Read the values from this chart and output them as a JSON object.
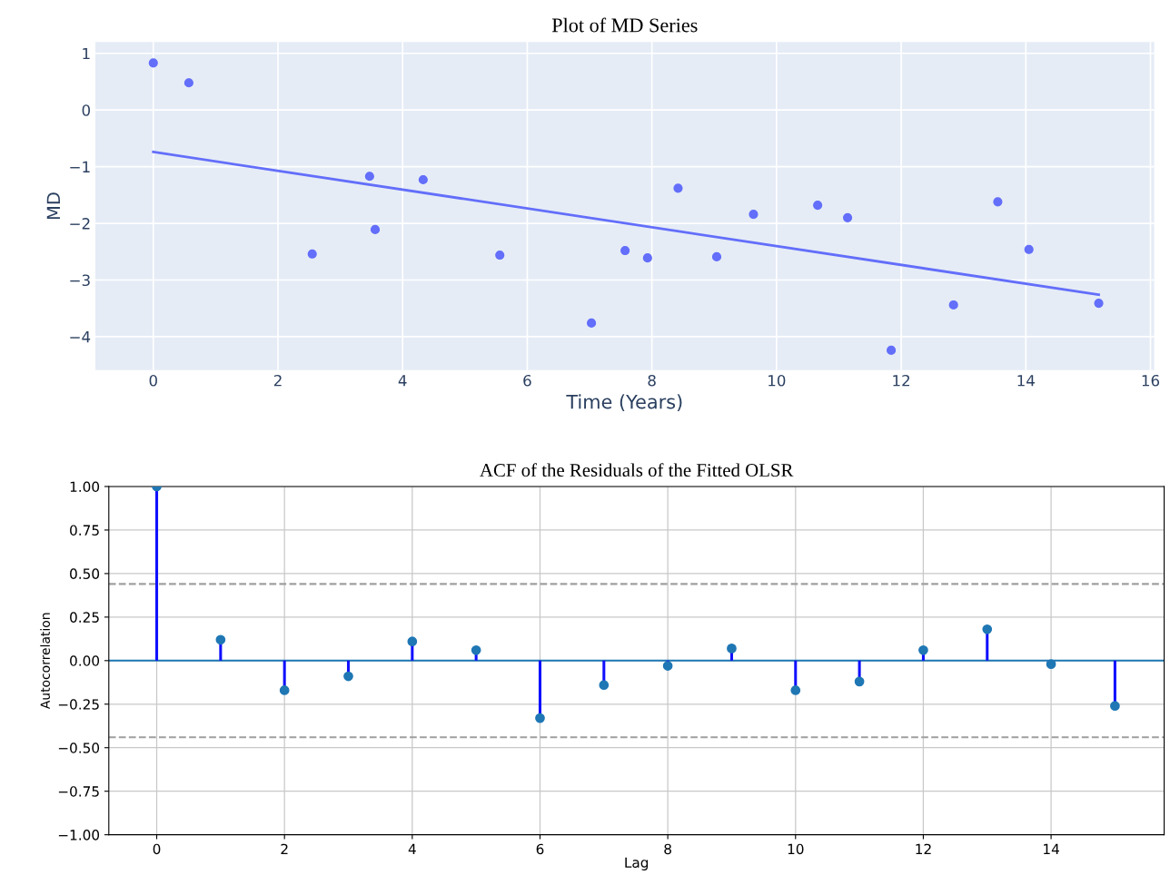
{
  "chart_data": [
    {
      "type": "scatter",
      "title": "Plot of MD Series",
      "xlabel": "Time (Years)",
      "ylabel": "MD",
      "xlim": [
        -0.93,
        16.06
      ],
      "ylim": [
        -4.59,
        1.2
      ],
      "xticks": [
        0,
        2,
        4,
        6,
        8,
        10,
        12,
        14,
        16
      ],
      "yticks": [
        1,
        0,
        {
          "value": -1,
          "label": "−1"
        },
        {
          "value": -2,
          "label": "−2"
        },
        {
          "value": -3,
          "label": "−3"
        },
        {
          "value": -4,
          "label": "−4"
        }
      ],
      "grid": true,
      "series": [
        {
          "type": "scatter",
          "marker": "circle",
          "color": "#636efa",
          "x": [
            0,
            0.57,
            2.55,
            3.47,
            3.56,
            4.33,
            5.56,
            7.03,
            7.57,
            7.93,
            8.42,
            9.04,
            9.63,
            10.66,
            11.14,
            11.84,
            12.84,
            13.55,
            14.05,
            15.17
          ],
          "values": [
            0.83,
            0.48,
            -2.54,
            -1.17,
            -2.11,
            -1.23,
            -2.56,
            -3.76,
            -2.48,
            -2.61,
            -1.38,
            -2.59,
            -1.84,
            -1.68,
            -1.9,
            -4.24,
            -3.44,
            -1.62,
            -2.46,
            -3.41
          ]
        },
        {
          "type": "line",
          "marker": "none",
          "color": "#636efa",
          "x": [
            0,
            15.17
          ],
          "values": [
            -0.74,
            -3.26
          ]
        }
      ]
    },
    {
      "type": "lollipop",
      "title": "ACF of the Residuals of the Fitted OLSR",
      "xlabel": "Lag",
      "ylabel": "Autocorrelation",
      "xlim": [
        -0.75,
        15.77
      ],
      "ylim": [
        -1.0,
        1.0
      ],
      "xticks": [
        0,
        2,
        4,
        6,
        8,
        10,
        12,
        14
      ],
      "yticks": [
        {
          "value": 1,
          "label": "1.00"
        },
        {
          "value": 0.75,
          "label": "0.75"
        },
        {
          "value": 0.5,
          "label": "0.50"
        },
        {
          "value": 0.25,
          "label": "0.25"
        },
        {
          "value": 0,
          "label": "0.00"
        },
        {
          "value": -0.25,
          "label": "−0.25"
        },
        {
          "value": -0.5,
          "label": "−0.50"
        },
        {
          "value": -0.75,
          "label": "−0.75"
        },
        {
          "value": -1,
          "label": "−1.00"
        }
      ],
      "grid": true,
      "marker": "circle",
      "ref_lines": [
        {
          "axis": "y",
          "value": 0,
          "color": "#1f77b4",
          "line_style": "solid"
        },
        {
          "axis": "y",
          "value": 0.44,
          "color": "#a0a0a0",
          "line_style": "dashed"
        },
        {
          "axis": "y",
          "value": -0.44,
          "color": "#a0a0a0",
          "line_style": "dashed"
        }
      ],
      "series": [
        {
          "type": "lollipop",
          "color": "#1f77b4",
          "x": [
            0,
            1,
            2,
            3,
            4,
            5,
            6,
            7,
            8,
            9,
            10,
            11,
            12,
            13,
            14,
            15
          ],
          "values": [
            1.0,
            0.12,
            -0.17,
            -0.09,
            0.11,
            0.06,
            -0.33,
            -0.14,
            -0.03,
            0.07,
            -0.17,
            -0.12,
            0.06,
            0.18,
            -0.02,
            -0.26
          ]
        }
      ]
    }
  ]
}
